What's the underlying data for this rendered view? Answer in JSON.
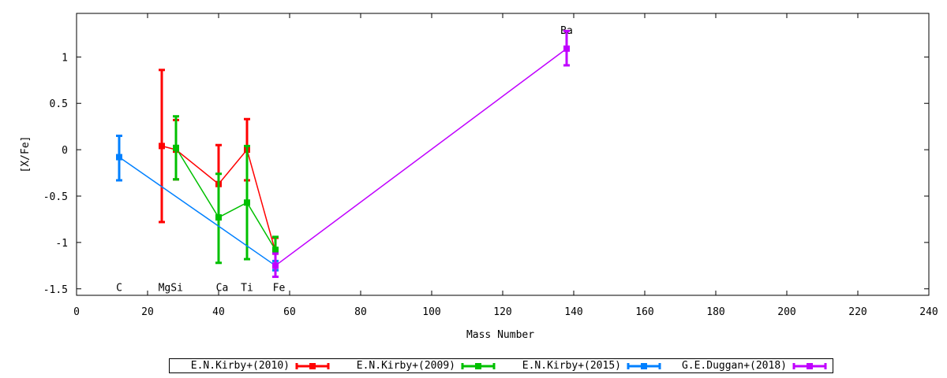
{
  "chart_data": {
    "type": "line",
    "xlabel": "Mass Number",
    "ylabel": "[X/Fe]",
    "xlim": [
      0,
      240
    ],
    "ylim": [
      -1.57,
      1.47
    ],
    "xticks": [
      0,
      20,
      40,
      60,
      80,
      100,
      120,
      140,
      160,
      180,
      200,
      220,
      240
    ],
    "yticks": [
      -1.5,
      -1,
      -0.5,
      0,
      0.5,
      1
    ],
    "ytick_labels": [
      "-1.5",
      "-1",
      "-0.5",
      "0",
      "0.5",
      "1"
    ],
    "grid": false,
    "legend_position": "bottom",
    "element_labels": [
      {
        "text": "C",
        "x": 12,
        "y": -1.48
      },
      {
        "text": "MgSi",
        "x": 26.5,
        "y": -1.48
      },
      {
        "text": "Ca",
        "x": 41,
        "y": -1.48
      },
      {
        "text": "Ti",
        "x": 48,
        "y": -1.48
      },
      {
        "text": "Fe",
        "x": 57,
        "y": -1.48
      },
      {
        "text": "Ba",
        "x": 138,
        "y": 1.29
      }
    ],
    "series": [
      {
        "name": "E.N.Kirby+(2010)",
        "color": "#ff0000",
        "x": [
          24,
          28,
          40,
          48,
          56
        ],
        "y": [
          0.04,
          0.0,
          -0.37,
          0.0,
          -1.1
        ],
        "err_low": [
          -0.78,
          -0.32,
          -0.37,
          -0.33,
          -1.1
        ],
        "err_high": [
          0.86,
          0.32,
          0.05,
          0.33,
          -0.95
        ]
      },
      {
        "name": "E.N.Kirby+(2009)",
        "color": "#00c000",
        "x": [
          28,
          40,
          48,
          56
        ],
        "y": [
          0.02,
          -0.73,
          -0.57,
          -1.08
        ],
        "err_low": [
          -0.32,
          -1.22,
          -1.18,
          -1.23
        ],
        "err_high": [
          0.36,
          -0.26,
          0.04,
          -0.94
        ]
      },
      {
        "name": "E.N.Kirby+(2015)",
        "color": "#0080ff",
        "x": [
          12,
          56
        ],
        "y": [
          -0.08,
          -1.25
        ],
        "err_low": [
          -0.33,
          -1.3
        ],
        "err_high": [
          0.15,
          -1.2
        ]
      },
      {
        "name": "G.E.Duggan+(2018)",
        "color": "#c000ff",
        "x": [
          56,
          138
        ],
        "y": [
          -1.25,
          1.09
        ],
        "err_low": [
          -1.37,
          0.91
        ],
        "err_high": [
          -1.12,
          1.28
        ]
      }
    ]
  }
}
